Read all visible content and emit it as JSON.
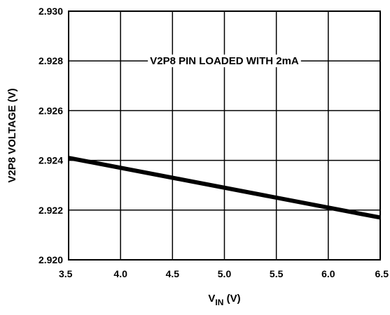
{
  "chart_data": {
    "type": "line",
    "title": "",
    "xlabel_main": "V",
    "xlabel_sub": "IN",
    "xlabel_unit": " (V)",
    "ylabel": "V2P8 VOLTAGE (V)",
    "annotation": "V2P8 PIN LOADED WITH 2mA",
    "xlim": [
      3.5,
      6.5
    ],
    "ylim": [
      2.92,
      2.93
    ],
    "x_ticks": [
      3.5,
      4.0,
      4.5,
      5.0,
      5.5,
      6.0,
      6.5
    ],
    "x_tick_labels": [
      "3.5",
      "4.0",
      "4.5",
      "5.0",
      "5.5",
      "6.0",
      "6.5"
    ],
    "y_ticks": [
      2.92,
      2.922,
      2.924,
      2.926,
      2.928,
      2.93
    ],
    "y_tick_labels": [
      "2.920",
      "2.922",
      "2.924",
      "2.926",
      "2.928",
      "2.930"
    ],
    "grid": true,
    "line_color": "#000000",
    "series": [
      {
        "x": [
          3.5,
          6.5
        ],
        "y": [
          2.9241,
          2.9217
        ]
      }
    ]
  }
}
